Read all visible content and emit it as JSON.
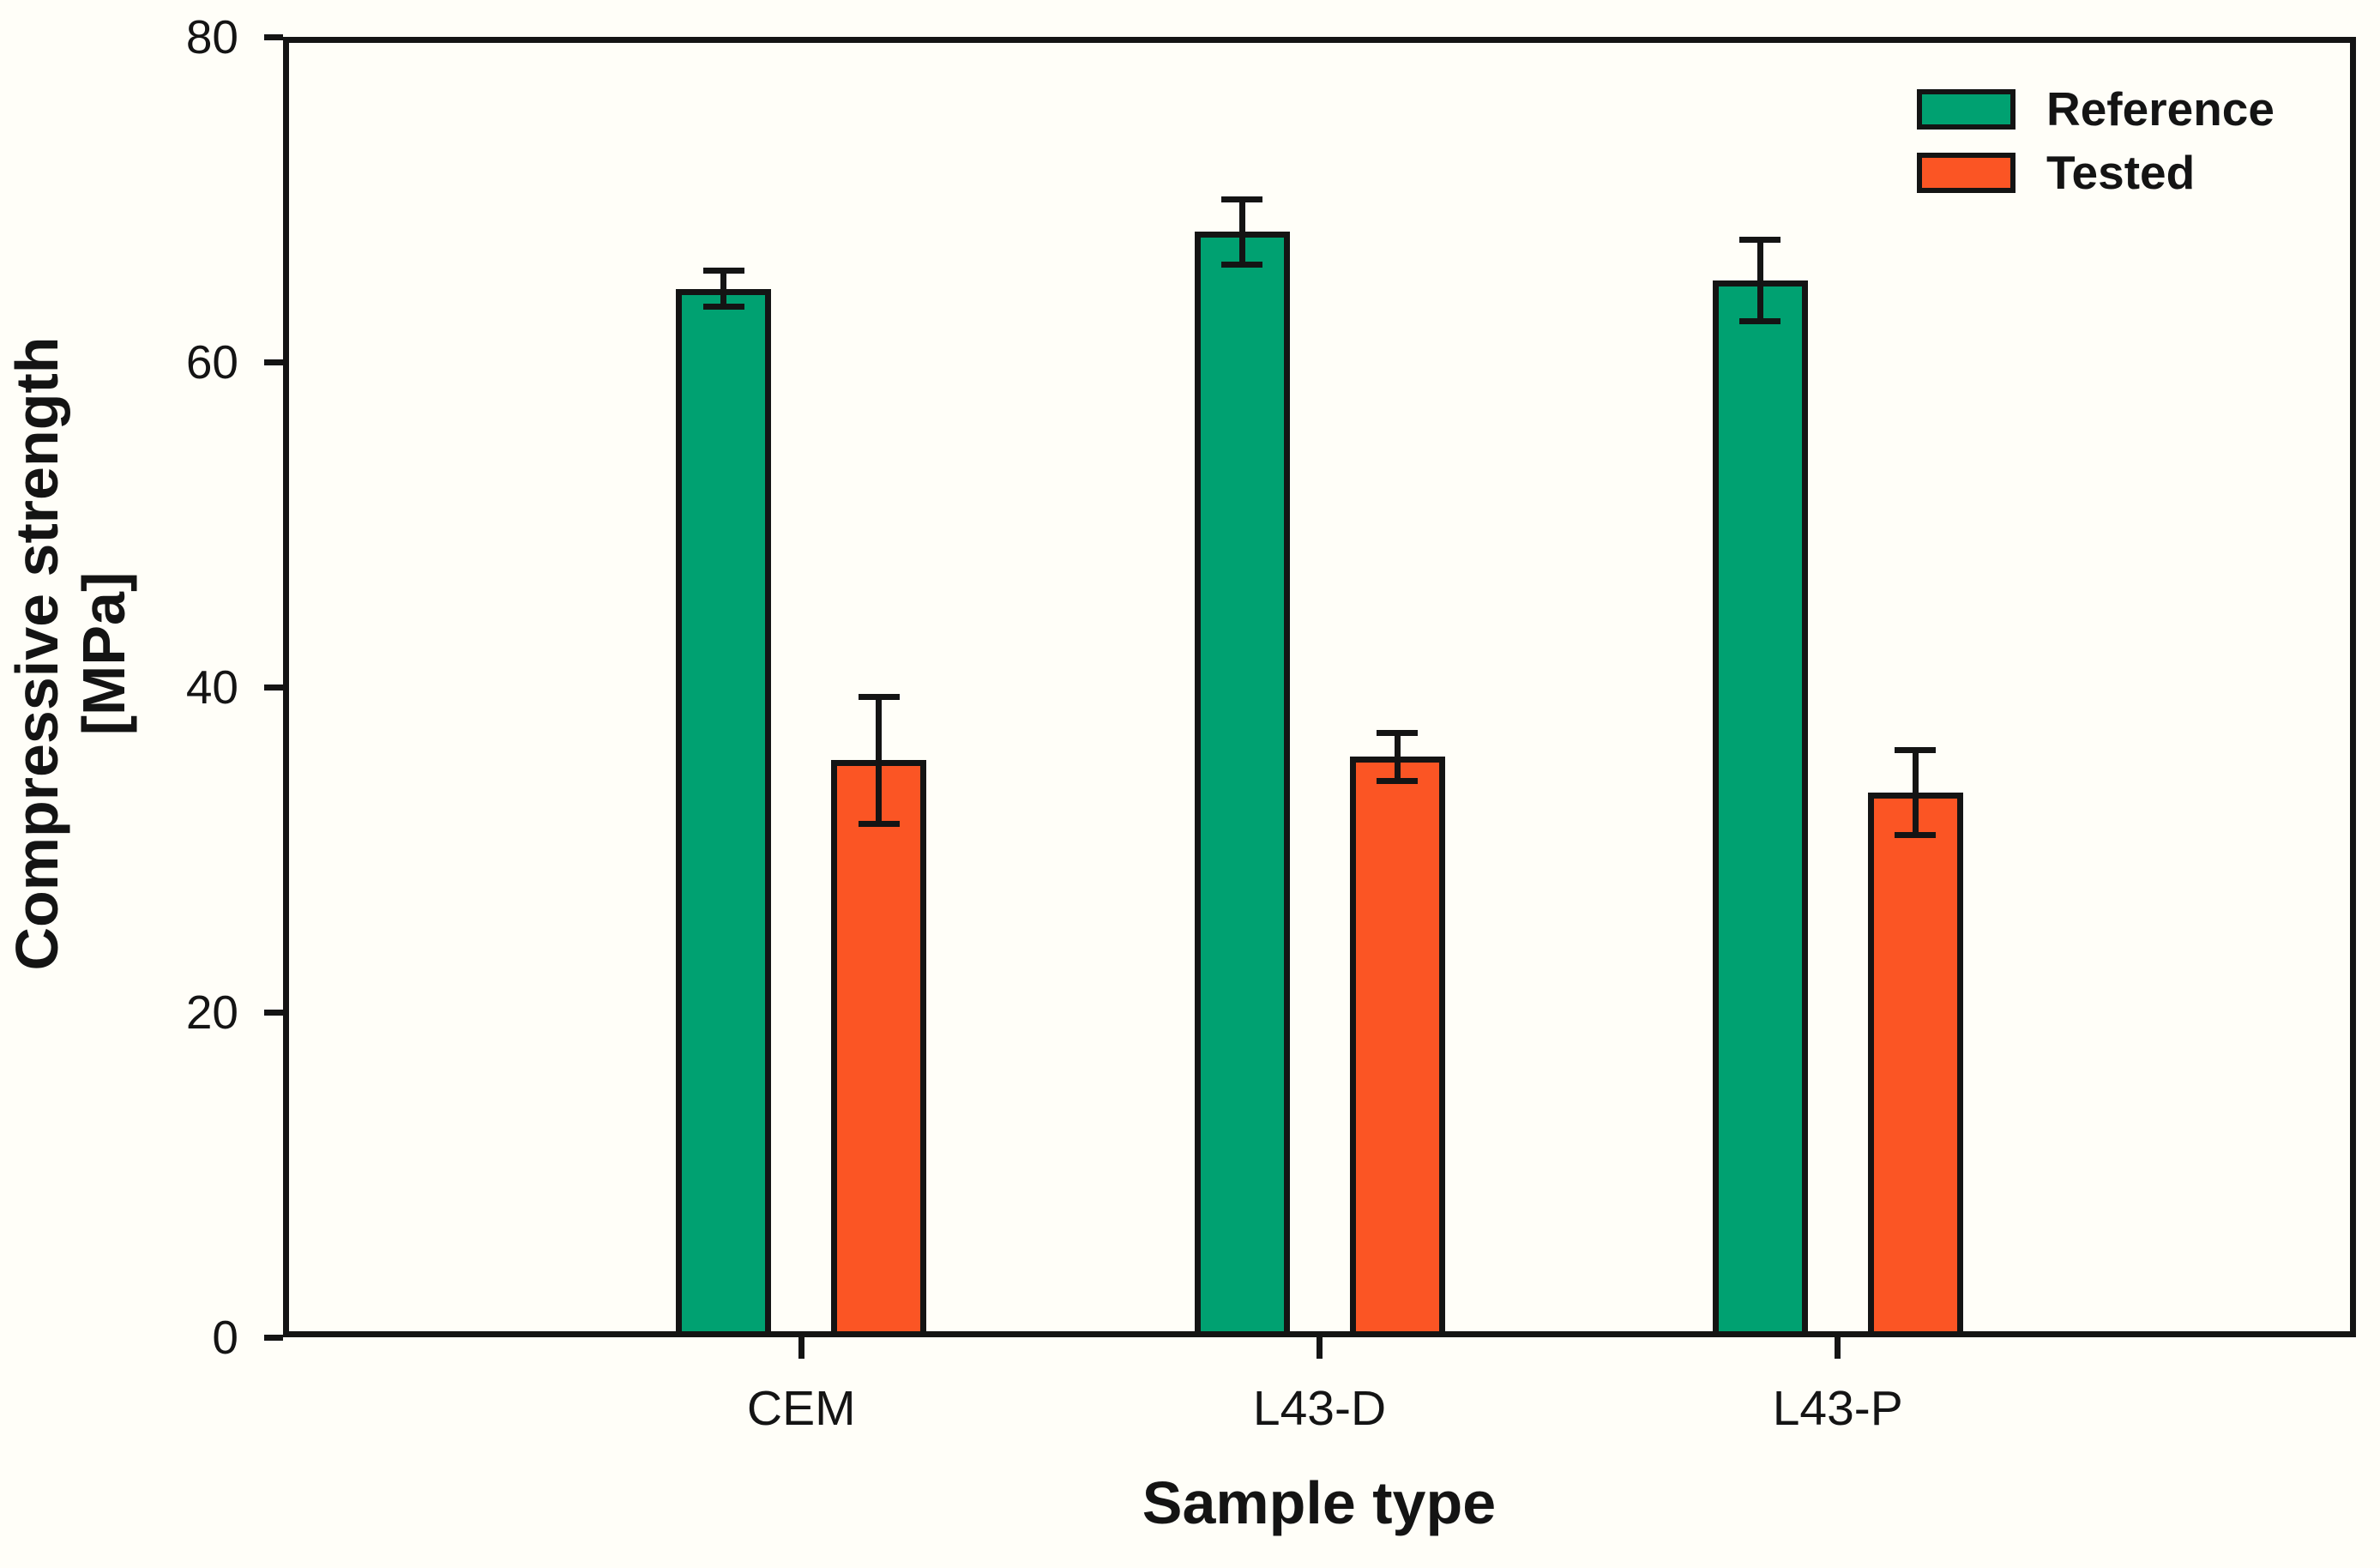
{
  "figure": {
    "background": "#fffef8",
    "axis_color": "#141414"
  },
  "chart_data": {
    "type": "bar",
    "title": "",
    "xlabel": "Sample type",
    "ylabel": "Compressive strength [MPa]",
    "ylabel_lines": [
      "Compressive strength",
      "[MPa]"
    ],
    "categories": [
      "CEM",
      "L43-D",
      "L43-P"
    ],
    "series": [
      {
        "name": "Reference",
        "color": "#00A171",
        "values": [
          64.5,
          68.0,
          65.0
        ],
        "errors": [
          1.1,
          2.0,
          2.5
        ]
      },
      {
        "name": "Tested",
        "color": "#FB5524",
        "values": [
          35.5,
          35.7,
          33.5
        ],
        "errors": [
          3.9,
          1.5,
          2.6
        ]
      }
    ],
    "ylim": [
      0,
      80
    ],
    "yticks": [
      0,
      20,
      40,
      60,
      80
    ],
    "grid": false,
    "error_bars": true,
    "legend_position": "top-right"
  }
}
